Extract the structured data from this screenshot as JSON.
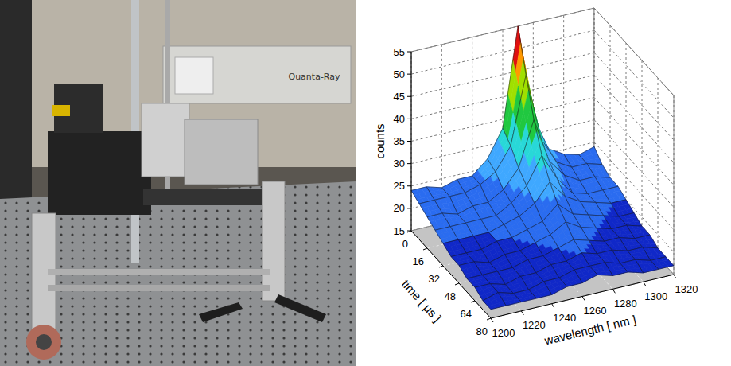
{
  "photo": {
    "label": "Quanta-Ray"
  },
  "chart_data": {
    "type": "surface",
    "xlabel": "wavelength [ nm ]",
    "ylabel": "time [ µs ]",
    "zlabel": "counts",
    "x": [
      1200,
      1210,
      1220,
      1230,
      1240,
      1250,
      1260,
      1270,
      1280,
      1290,
      1300,
      1310,
      1320
    ],
    "y": [
      0,
      8,
      16,
      24,
      32,
      40,
      48,
      56,
      64,
      72,
      80
    ],
    "values": [
      [
        24,
        24,
        23,
        24,
        24,
        27,
        33,
        55,
        34,
        26,
        24,
        23,
        24
      ],
      [
        23,
        23,
        23,
        23,
        24,
        26,
        31,
        46,
        31,
        25,
        23,
        23,
        22
      ],
      [
        22,
        22,
        21,
        22,
        22,
        24,
        28,
        38,
        28,
        24,
        22,
        22,
        21
      ],
      [
        21,
        21,
        21,
        21,
        21,
        23,
        26,
        32,
        26,
        22,
        21,
        21,
        21
      ],
      [
        20,
        20,
        20,
        20,
        21,
        22,
        24,
        28,
        24,
        22,
        21,
        20,
        20
      ],
      [
        19,
        19,
        19,
        20,
        20,
        21,
        22,
        25,
        22,
        21,
        20,
        19,
        19
      ],
      [
        19,
        19,
        18,
        19,
        19,
        20,
        21,
        23,
        21,
        20,
        19,
        19,
        18
      ],
      [
        18,
        18,
        18,
        18,
        19,
        19,
        20,
        21,
        20,
        19,
        19,
        18,
        18
      ],
      [
        18,
        18,
        17,
        18,
        18,
        19,
        19,
        20,
        19,
        19,
        18,
        18,
        17
      ],
      [
        17,
        18,
        17,
        17,
        18,
        18,
        19,
        19,
        19,
        18,
        18,
        17,
        17
      ],
      [
        17,
        17,
        17,
        17,
        17,
        18,
        18,
        19,
        18,
        18,
        17,
        17,
        17
      ]
    ],
    "xlim": [
      1200,
      1320
    ],
    "ylim": [
      0,
      80
    ],
    "zlim": [
      15,
      55
    ],
    "xticks": [
      1200,
      1220,
      1240,
      1260,
      1280,
      1300,
      1320
    ],
    "yticks": [
      0,
      16,
      32,
      48,
      64,
      80
    ],
    "zticks": [
      15,
      20,
      25,
      30,
      35,
      40,
      45,
      50,
      55
    ],
    "colors": [
      "#1028c8",
      "#2a6cf0",
      "#3fa8ff",
      "#28d8d8",
      "#20c840",
      "#a0e000",
      "#ff9900",
      "#e01010"
    ],
    "grid": true
  }
}
